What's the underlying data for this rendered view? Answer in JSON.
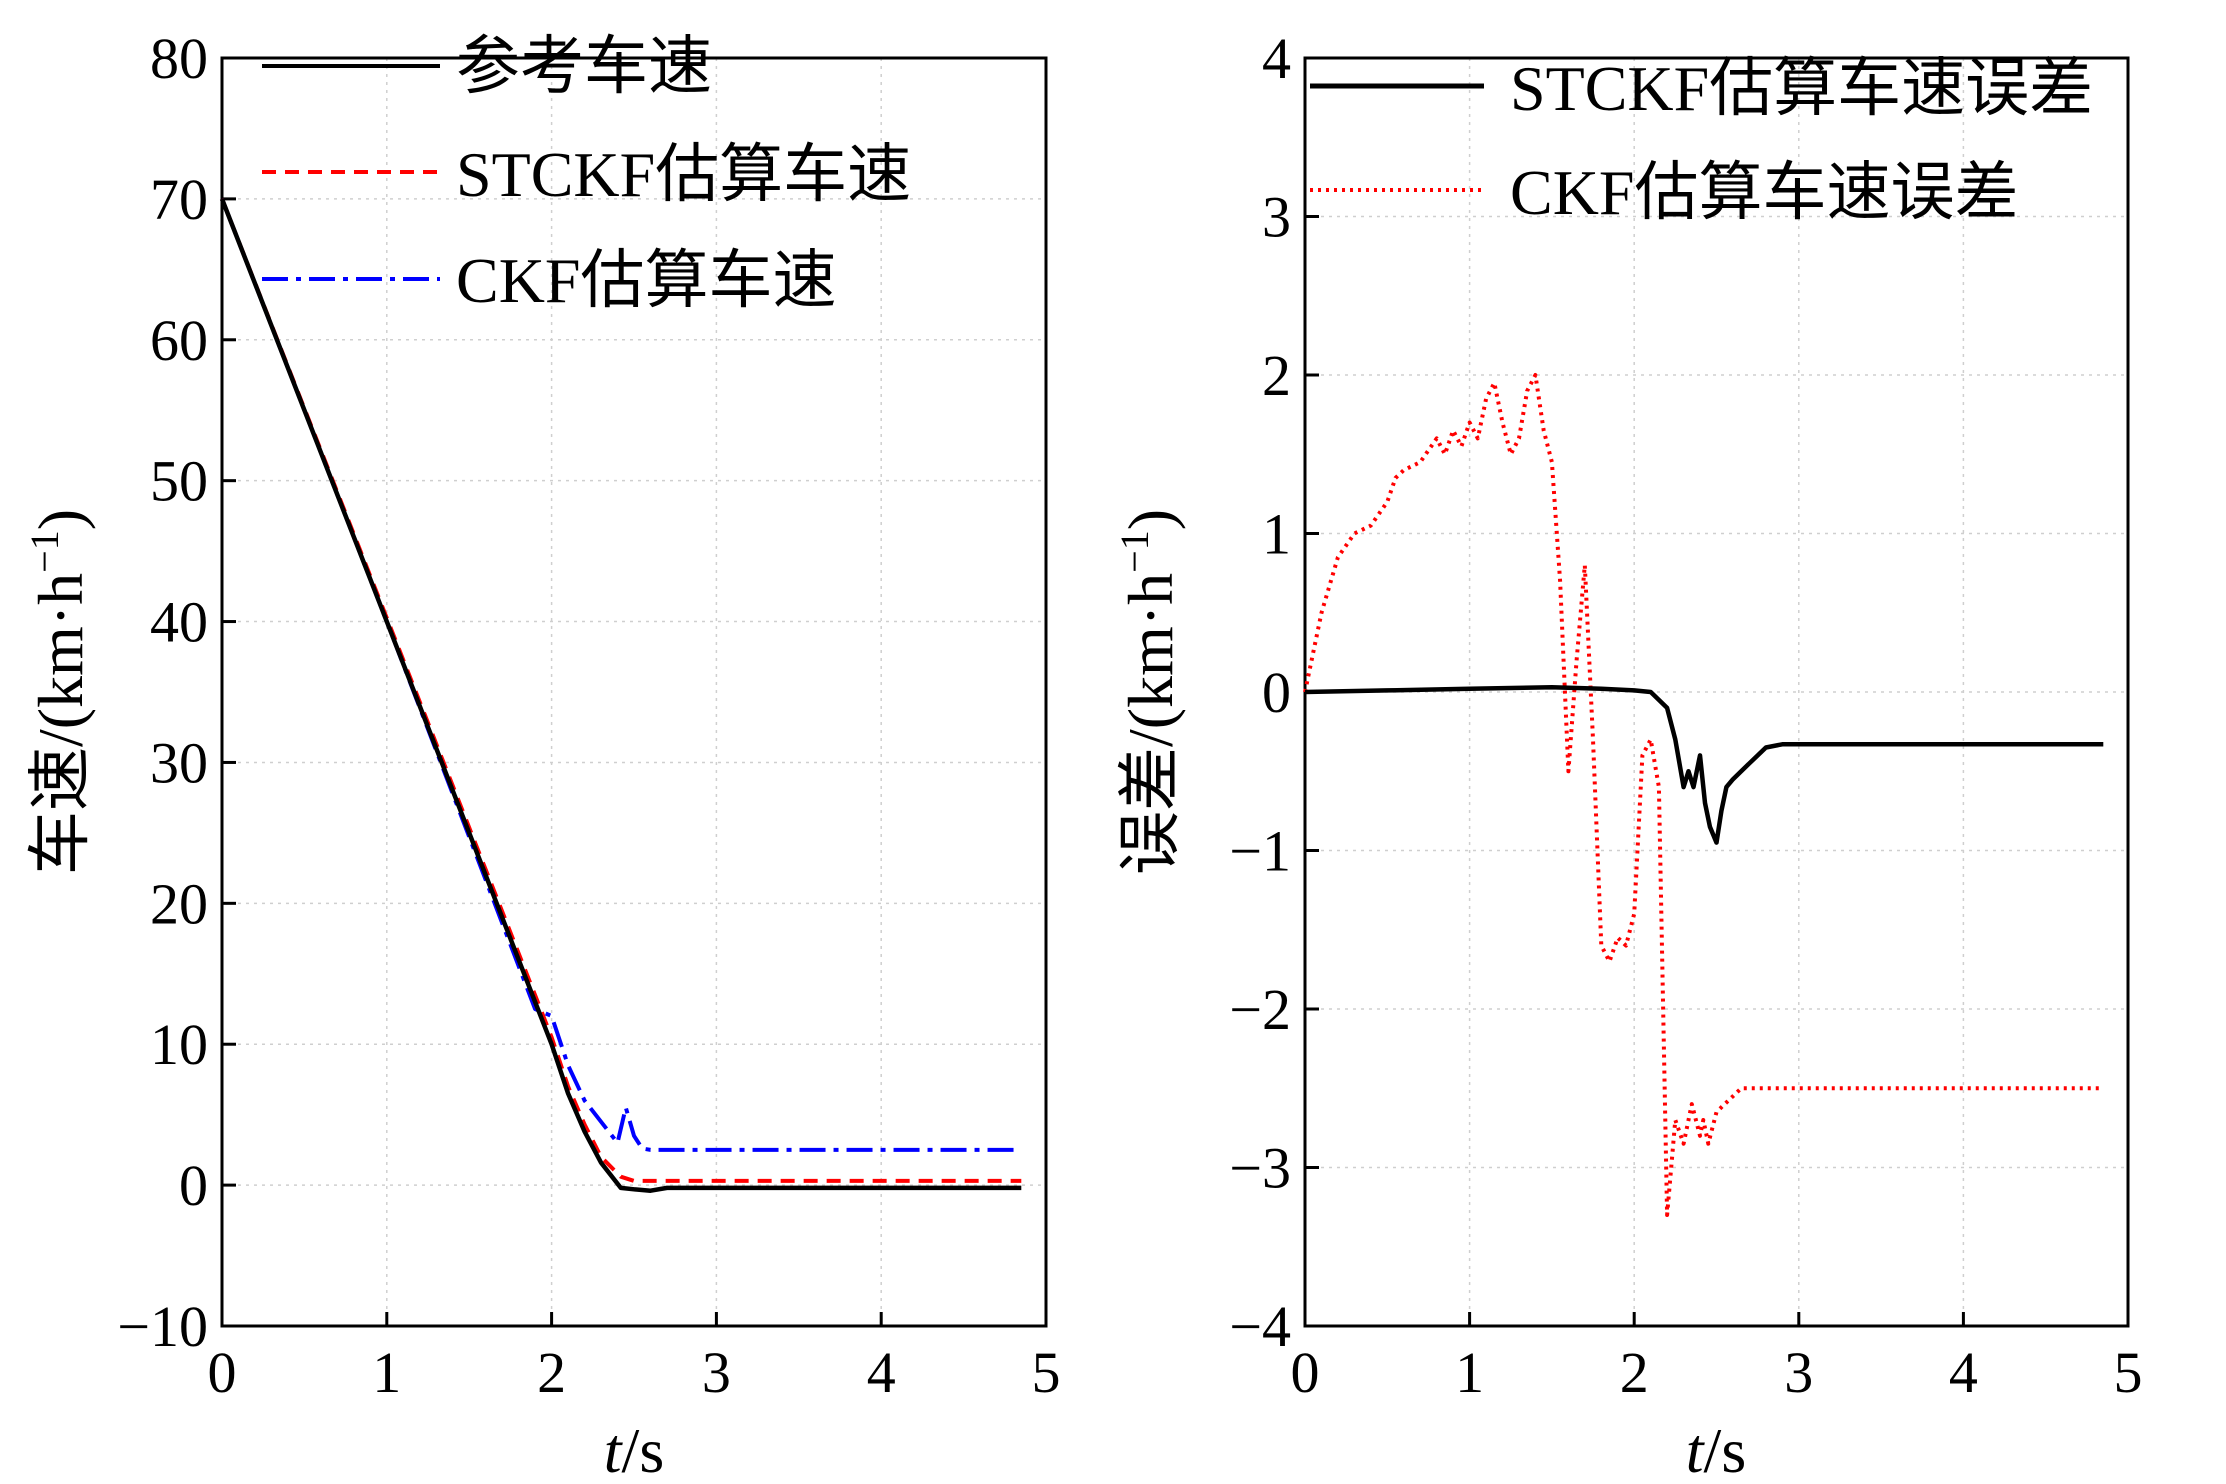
{
  "chart_data": [
    {
      "type": "line",
      "xlabel_italic": "t",
      "xlabel_unit": "/s",
      "ylabel": "车速/(km·h",
      "ylabel_sup": "−1",
      "ylabel_close": ")",
      "xlim": [
        0,
        5
      ],
      "ylim": [
        -10,
        80
      ],
      "xticks": [
        "0",
        "1",
        "2",
        "3",
        "4",
        "5"
      ],
      "yticks": [
        "−10",
        "0",
        "10",
        "20",
        "30",
        "40",
        "50",
        "60",
        "70",
        "80"
      ],
      "grid": true,
      "legend_position": "top-left",
      "series": [
        {
          "name": "参考车速",
          "color": "#000000",
          "style": "solid",
          "x": [
            0,
            2.0,
            2.1,
            2.2,
            2.3,
            2.42,
            2.5,
            2.6,
            2.7,
            4.85
          ],
          "y": [
            70,
            10,
            6.5,
            3.8,
            1.6,
            -0.2,
            -0.3,
            -0.4,
            -0.2,
            -0.2
          ]
        },
        {
          "name": "STCKF估算车速",
          "color": "#ff0000",
          "style": "dashed",
          "x": [
            0,
            2.0,
            2.1,
            2.2,
            2.3,
            2.42,
            2.5,
            2.6,
            2.7,
            4.85
          ],
          "y": [
            70,
            10.5,
            7.0,
            4.3,
            2.0,
            0.6,
            0.3,
            0.3,
            0.3,
            0.3
          ]
        },
        {
          "name": "CKF估算车速",
          "color": "#0000ff",
          "style": "dashdot",
          "x": [
            0,
            1.0,
            1.9,
            2.0,
            2.1,
            2.2,
            2.3,
            2.4,
            2.45,
            2.5,
            2.55,
            2.6,
            2.7,
            4.85
          ],
          "y": [
            70,
            40,
            12.5,
            12.0,
            8.5,
            6.0,
            4.5,
            3.0,
            5.5,
            3.5,
            2.6,
            2.5,
            2.5,
            2.5
          ]
        }
      ]
    },
    {
      "type": "line",
      "xlabel_italic": "t",
      "xlabel_unit": "/s",
      "ylabel": "误差/(km·h",
      "ylabel_sup": "−1",
      "ylabel_close": ")",
      "xlim": [
        0,
        5
      ],
      "ylim": [
        -4,
        4
      ],
      "xticks": [
        "0",
        "1",
        "2",
        "3",
        "4",
        "5"
      ],
      "yticks": [
        "−4",
        "−3",
        "−2",
        "−1",
        "0",
        "1",
        "2",
        "3",
        "4"
      ],
      "grid": true,
      "legend_position": "top",
      "series": [
        {
          "name": "STCKF估算车速误差",
          "color": "#000000",
          "style": "solid",
          "x": [
            0,
            0.5,
            1.0,
            1.5,
            1.8,
            2.0,
            2.1,
            2.2,
            2.25,
            2.3,
            2.33,
            2.36,
            2.4,
            2.43,
            2.46,
            2.5,
            2.53,
            2.56,
            2.6,
            2.65,
            2.7,
            2.75,
            2.8,
            2.9,
            4.85
          ],
          "y": [
            0,
            0.01,
            0.02,
            0.03,
            0.02,
            0.01,
            0.0,
            -0.1,
            -0.3,
            -0.6,
            -0.5,
            -0.6,
            -0.4,
            -0.7,
            -0.85,
            -0.95,
            -0.75,
            -0.6,
            -0.55,
            -0.5,
            -0.45,
            -0.4,
            -0.35,
            -0.33,
            -0.33
          ]
        },
        {
          "name": "CKF估算车速误差",
          "color": "#ff0000",
          "style": "dotted",
          "x": [
            0,
            0.1,
            0.2,
            0.3,
            0.4,
            0.5,
            0.55,
            0.6,
            0.7,
            0.8,
            0.85,
            0.9,
            0.95,
            1.0,
            1.05,
            1.1,
            1.15,
            1.2,
            1.25,
            1.3,
            1.35,
            1.4,
            1.45,
            1.5,
            1.55,
            1.6,
            1.65,
            1.7,
            1.75,
            1.8,
            1.85,
            1.9,
            1.95,
            2.0,
            2.05,
            2.1,
            2.15,
            2.2,
            2.25,
            2.3,
            2.35,
            2.4,
            2.42,
            2.45,
            2.5,
            2.55,
            2.6,
            2.65,
            2.7,
            2.75,
            2.8,
            2.9,
            3.0,
            4.85
          ],
          "y": [
            0.0,
            0.5,
            0.85,
            1.0,
            1.05,
            1.2,
            1.35,
            1.4,
            1.45,
            1.6,
            1.5,
            1.65,
            1.55,
            1.7,
            1.6,
            1.85,
            1.95,
            1.7,
            1.5,
            1.6,
            1.9,
            2.0,
            1.65,
            1.45,
            0.7,
            -0.5,
            0.2,
            0.8,
            -0.3,
            -1.6,
            -1.7,
            -1.55,
            -1.6,
            -1.4,
            -0.4,
            -0.3,
            -0.6,
            -3.3,
            -2.7,
            -2.85,
            -2.6,
            -2.8,
            -2.7,
            -2.85,
            -2.65,
            -2.6,
            -2.55,
            -2.5,
            -2.5,
            -2.5,
            -2.5,
            -2.5,
            -2.5,
            -2.5
          ]
        }
      ]
    }
  ]
}
